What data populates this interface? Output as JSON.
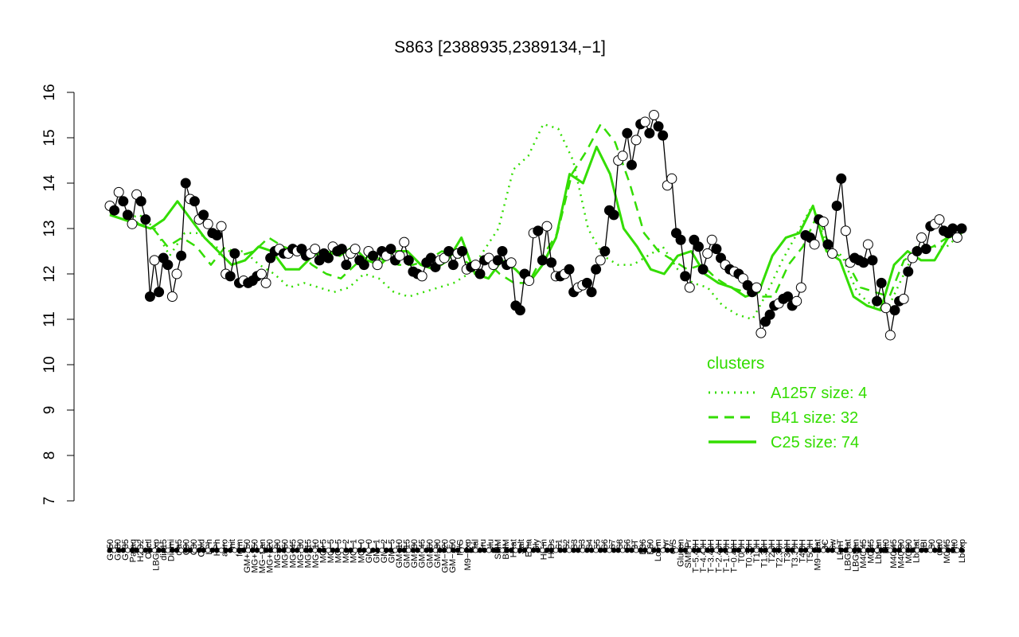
{
  "chart_data": {
    "type": "scatter",
    "title": "S863 [2388935,2389134,−1]",
    "xlabel": "",
    "ylabel": "",
    "ylim": [
      7,
      16
    ],
    "y_ticks": [
      7,
      8,
      9,
      10,
      11,
      12,
      13,
      14,
      15,
      16
    ],
    "x_tick_labels": [
      "G150",
      "G180",
      "G135",
      "Paraq",
      "H2O2",
      "Oxctl",
      "LBGexp",
      "dia15",
      "Diami",
      "dia5",
      "C90",
      "C30",
      "Cold",
      "LPh",
      "HPh",
      "aero",
      "nit",
      "ferm",
      "GM+150",
      "MG+150",
      "MG−tran",
      "MG+120",
      "MG+90",
      "MG+60",
      "MG+45",
      "MG+30",
      "MG+15",
      "MG+10",
      "MG+5",
      "MG−5",
      "MG−5",
      "MG−2",
      "MG−1",
      "MG−0",
      "GM−0",
      "GM−1",
      "GM−2",
      "GM−5",
      "GM−10",
      "GM−15",
      "GM−30",
      "GM−45",
      "GM−60",
      "GM−90",
      "GM−120",
      "GM−150",
      "M/G",
      "M9−exp",
      "Mal",
      "Fru",
      "Glu",
      "SMM",
      "BMM",
      "Heat",
      "Salt",
      "Etha",
      "Gly",
      "HiTm",
      "HiOs",
      "S1",
      "S2",
      "S3",
      "S3",
      "S4",
      "S5",
      "S6",
      "S7",
      "S8",
      "S6",
      "BT",
      "B36",
      "B60",
      "LoTm",
      "Pyr",
      "G/S",
      "Glucon",
      "SMMPr",
      "T−5.40H",
      "T−4.40H",
      "T−3.40H",
      "T−2.40H",
      "T−1.40H",
      "T−0.40H",
      "T0.0H",
      "T0.30H",
      "T1.0H",
      "T1.30H",
      "T2.0H",
      "T2.30H",
      "T3.0H",
      "T3.30H",
      "T4.0H",
      "T5.0H",
      "M9−stat",
      "BC",
      "Sw",
      "LPhT",
      "LBGstat",
      "LBGtran",
      "M40t45",
      "M0t45",
      "Lbtran",
      "Mt0",
      "M40t45",
      "M40t90",
      "M0t90",
      "Lbstat",
      "BI",
      "S0",
      "dia0",
      "M0t45",
      "Mt0",
      "Lbexp"
    ],
    "series": [
      {
        "values": [
          13.5,
          13.4,
          13.8,
          13.6,
          13.3,
          13.1,
          13.75,
          13.6,
          13.2,
          11.5,
          12.3,
          11.6,
          12.35,
          12.2,
          11.5,
          12.0,
          12.4,
          14.0,
          13.65,
          13.6,
          13.2,
          13.3,
          13.1,
          12.9,
          12.85,
          13.05,
          12.0,
          11.95,
          12.45,
          11.8,
          11.85,
          11.8,
          11.85,
          11.95,
          12.0,
          11.8,
          12.35,
          12.5,
          12.55,
          12.45,
          12.45,
          12.55,
          12.5,
          12.55,
          12.4,
          12.45,
          12.55,
          12.3,
          12.45,
          12.35,
          12.6,
          12.5,
          12.55,
          12.2,
          12.45,
          12.55,
          12.3,
          12.2,
          12.5,
          12.4,
          12.2,
          12.5,
          12.4,
          12.55,
          12.3,
          12.4,
          12.7,
          12.3,
          12.05,
          12.0,
          11.95,
          12.25,
          12.35,
          12.15,
          12.3,
          12.35,
          12.5,
          12.2,
          12.45,
          12.5,
          12.1,
          12.15,
          12.2,
          12.0,
          12.3,
          12.35,
          12.2,
          12.3,
          12.5,
          12.2,
          12.25,
          11.3,
          11.2,
          12.0,
          11.85,
          12.9,
          12.95,
          12.3,
          13.05,
          12.25,
          11.95,
          11.95,
          12.0,
          12.1,
          11.6,
          11.7,
          11.75,
          11.8,
          11.6,
          12.1,
          12.3,
          12.5,
          13.4,
          13.3,
          14.5,
          14.6,
          15.1,
          14.4,
          14.95,
          15.3,
          15.35,
          15.1,
          15.5,
          15.25,
          15.05,
          13.95,
          14.1,
          12.9,
          12.75,
          11.95,
          11.7,
          12.75,
          12.6,
          12.1,
          12.45,
          12.75,
          12.55,
          12.35,
          12.2,
          12.1,
          12.05,
          12.0,
          11.9,
          11.75,
          11.6,
          11.7,
          10.7,
          10.95,
          11.1,
          11.3,
          11.35,
          11.45,
          11.5,
          11.3,
          11.4,
          11.7,
          12.85,
          12.8,
          12.65,
          13.2,
          13.15,
          12.65,
          12.45,
          13.5,
          14.1,
          12.95,
          12.25,
          12.35,
          12.3,
          12.25,
          12.65,
          12.3,
          11.4,
          11.8,
          11.25,
          10.65,
          11.2,
          11.4,
          11.45,
          12.05,
          12.35,
          12.5,
          12.8,
          12.55,
          13.05,
          13.1,
          13.2,
          12.95,
          12.9,
          13.0,
          12.8,
          13.0
        ]
      }
    ],
    "clusters": {
      "title": "clusters",
      "items": [
        {
          "name": "A1257 size: 4",
          "style": "dotted",
          "values": [
            13.3,
            13.2,
            13.3,
            13.0,
            12.4,
            12.9,
            12.9,
            12.6,
            12.5,
            12.5,
            12.2,
            12.0,
            11.7,
            11.8,
            11.7,
            11.6,
            11.7,
            12.0,
            11.9,
            11.6,
            11.5,
            11.6,
            11.7,
            11.8,
            12.0,
            12.5,
            13.0,
            14.3,
            14.6,
            15.3,
            15.2,
            14.5,
            13.0,
            12.4,
            12.2,
            12.2,
            12.4,
            12.6,
            12.1,
            11.8,
            11.7,
            11.3,
            11.1,
            11.0,
            11.6,
            12.3,
            12.9,
            13.5,
            12.6,
            12.4,
            11.6,
            11.3,
            11.2,
            11.9,
            12.6,
            12.6,
            12.6,
            12.9
          ]
        },
        {
          "name": "B41 size: 32",
          "style": "dashed",
          "values": [
            13.3,
            13.4,
            13.1,
            13.0,
            12.6,
            12.8,
            12.6,
            12.2,
            12.6,
            12.4,
            12.5,
            12.8,
            12.6,
            12.5,
            12.2,
            12.0,
            11.9,
            12.2,
            12.4,
            12.3,
            12.2,
            12.2,
            12.3,
            12.5,
            12.4,
            12.2,
            12.3,
            12.0,
            11.8,
            11.8,
            12.4,
            12.9,
            14.2,
            14.7,
            15.3,
            14.9,
            14.0,
            12.9,
            12.5,
            12.3,
            12.1,
            12.2,
            11.9,
            11.7,
            11.6,
            11.5,
            11.5,
            12.2,
            12.6,
            13.3,
            12.5,
            12.3,
            11.7,
            11.6,
            11.5,
            12.3,
            12.5,
            12.6,
            12.8,
            12.9
          ]
        },
        {
          "name": "C25 size: 74",
          "style": "solid",
          "values": [
            13.3,
            13.2,
            13.1,
            13.0,
            13.2,
            13.6,
            13.2,
            12.8,
            12.5,
            12.2,
            12.3,
            12.6,
            12.5,
            12.1,
            12.1,
            12.4,
            12.5,
            12.4,
            12.6,
            12.3,
            12.2,
            12.5,
            12.5,
            12.2,
            12.1,
            12.3,
            12.8,
            12.0,
            11.9,
            12.3,
            12.1,
            11.8,
            12.2,
            12.8,
            14.2,
            14.0,
            14.8,
            14.2,
            13.0,
            12.6,
            12.1,
            12.0,
            12.4,
            12.5,
            12.0,
            11.8,
            11.7,
            11.5,
            11.6,
            12.4,
            12.8,
            12.9,
            13.5,
            12.5,
            12.3,
            11.5,
            11.3,
            11.2,
            12.2,
            12.5,
            12.3,
            12.3,
            12.8,
            12.9
          ]
        }
      ]
    },
    "colors": {
      "points_fill": "#000000",
      "points_open": "#ffffff",
      "clusters": "#33dd00",
      "axis": "#000000"
    },
    "grid": false,
    "legend_position": "bottom-right"
  }
}
